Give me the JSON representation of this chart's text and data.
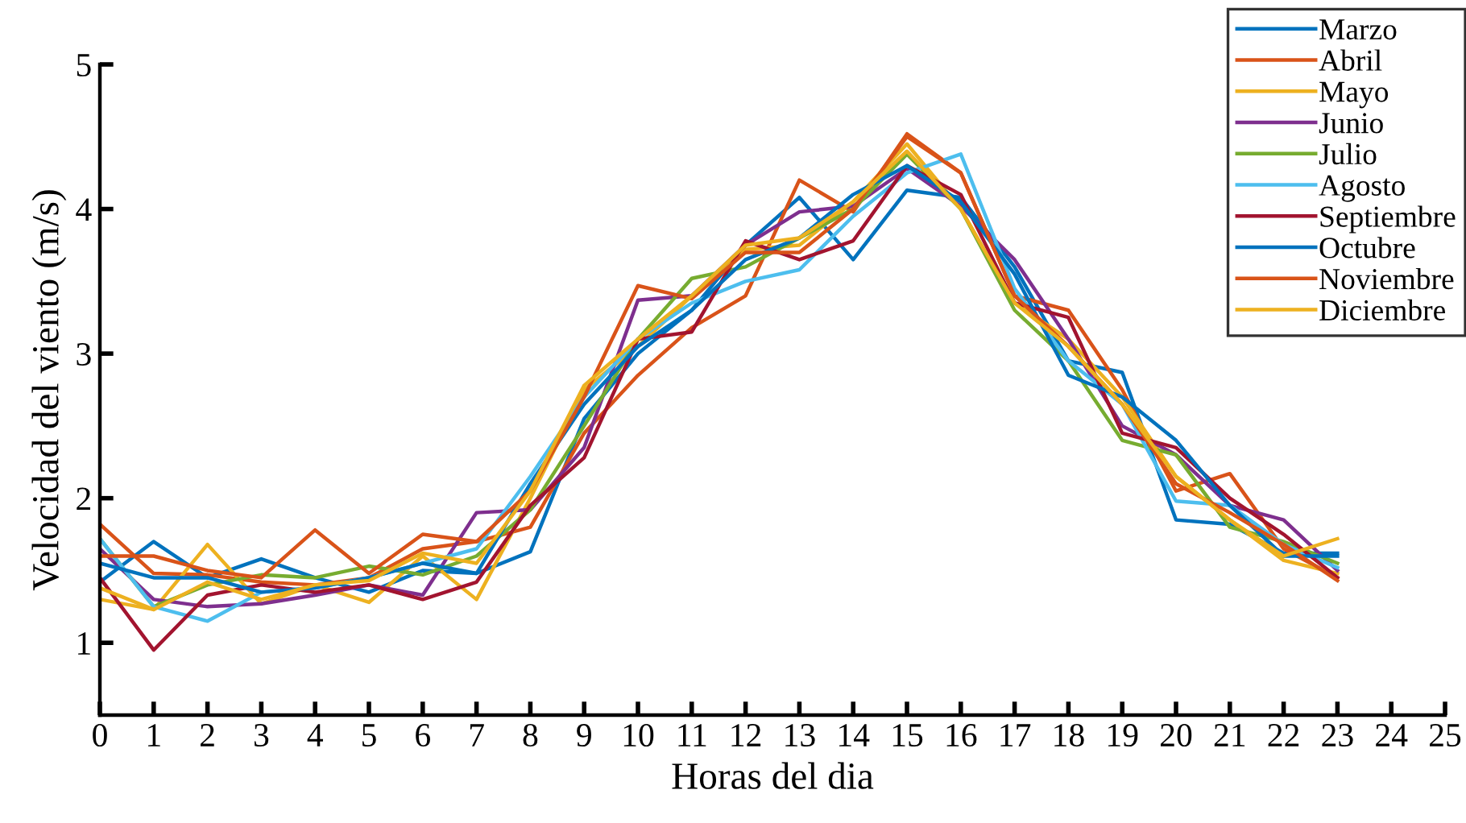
{
  "chart_data": {
    "type": "line",
    "xlabel": "Horas del dia",
    "ylabel": "Velocidad del viento (m/s)",
    "x": [
      0,
      1,
      2,
      3,
      4,
      5,
      6,
      7,
      8,
      9,
      10,
      11,
      12,
      13,
      14,
      15,
      16,
      17,
      18,
      19,
      20,
      21,
      22,
      23
    ],
    "xlim": [
      0,
      25
    ],
    "xticks": [
      0,
      1,
      2,
      3,
      4,
      5,
      6,
      7,
      8,
      9,
      10,
      11,
      12,
      13,
      14,
      15,
      16,
      17,
      18,
      19,
      20,
      21,
      22,
      23,
      24,
      25
    ],
    "ylim": [
      0.5,
      5
    ],
    "yticks": [
      1,
      2,
      3,
      4,
      5
    ],
    "grid": false,
    "legend": "top right",
    "marker": "none",
    "line_style": "solid",
    "series": [
      {
        "name": "Marzo",
        "color": "#0072bd",
        "values": [
          1.42,
          1.7,
          1.45,
          1.58,
          1.45,
          1.35,
          1.5,
          1.48,
          1.63,
          2.55,
          3.0,
          3.3,
          3.75,
          4.08,
          3.65,
          4.13,
          4.08,
          3.6,
          2.95,
          2.87,
          1.85,
          1.82,
          1.62,
          1.62
        ]
      },
      {
        "name": "Abril",
        "color": "#d95319",
        "values": [
          1.82,
          1.48,
          1.47,
          1.42,
          1.4,
          1.45,
          1.65,
          1.7,
          1.8,
          2.45,
          2.85,
          3.18,
          3.4,
          4.2,
          3.98,
          4.52,
          4.25,
          3.4,
          3.3,
          2.75,
          2.05,
          2.17,
          1.65,
          1.45
        ]
      },
      {
        "name": "Mayo",
        "color": "#edb120",
        "values": [
          1.3,
          1.23,
          1.68,
          1.27,
          1.4,
          1.28,
          1.6,
          1.3,
          2.0,
          2.75,
          3.05,
          3.4,
          3.72,
          3.75,
          4.05,
          4.45,
          4.0,
          3.35,
          3.1,
          2.7,
          2.15,
          1.85,
          1.57,
          1.48
        ]
      },
      {
        "name": "Junio",
        "color": "#7e2f8e",
        "values": [
          1.65,
          1.3,
          1.25,
          1.27,
          1.33,
          1.4,
          1.33,
          1.9,
          1.92,
          2.35,
          3.37,
          3.4,
          3.75,
          3.98,
          4.02,
          4.28,
          4.02,
          3.65,
          3.1,
          2.5,
          2.3,
          1.95,
          1.85,
          1.5
        ]
      },
      {
        "name": "Julio",
        "color": "#77ac30",
        "values": [
          1.72,
          1.25,
          1.4,
          1.47,
          1.45,
          1.53,
          1.47,
          1.6,
          1.92,
          2.5,
          3.1,
          3.52,
          3.6,
          3.8,
          4.0,
          4.38,
          4.0,
          3.3,
          2.95,
          2.4,
          2.3,
          1.8,
          1.7,
          1.55
        ]
      },
      {
        "name": "Agosto",
        "color": "#4dbeee",
        "values": [
          1.72,
          1.25,
          1.15,
          1.35,
          1.38,
          1.45,
          1.55,
          1.65,
          2.15,
          2.7,
          3.1,
          3.35,
          3.5,
          3.58,
          3.95,
          4.25,
          4.38,
          3.45,
          2.95,
          2.65,
          1.98,
          1.95,
          1.68,
          1.52
        ]
      },
      {
        "name": "Septiembre",
        "color": "#a2142f",
        "values": [
          1.45,
          0.95,
          1.33,
          1.4,
          1.35,
          1.4,
          1.3,
          1.42,
          1.95,
          2.28,
          3.1,
          3.15,
          3.78,
          3.65,
          3.78,
          4.3,
          4.1,
          3.35,
          3.25,
          2.45,
          2.35,
          2.0,
          1.75,
          1.45
        ]
      },
      {
        "name": "Octubre",
        "color": "#0072bd",
        "values": [
          1.55,
          1.45,
          1.45,
          1.35,
          1.38,
          1.45,
          1.55,
          1.48,
          2.1,
          2.65,
          3.05,
          3.3,
          3.65,
          3.8,
          4.1,
          4.3,
          4.05,
          3.55,
          2.85,
          2.7,
          2.4,
          1.95,
          1.6,
          1.6
        ]
      },
      {
        "name": "Noviembre",
        "color": "#d95319",
        "values": [
          1.6,
          1.6,
          1.5,
          1.45,
          1.78,
          1.48,
          1.75,
          1.7,
          2.05,
          2.7,
          3.47,
          3.38,
          3.7,
          3.7,
          4.0,
          4.5,
          4.25,
          3.4,
          3.05,
          2.65,
          2.1,
          1.9,
          1.68,
          1.43
        ]
      },
      {
        "name": "Diciembre",
        "color": "#edb120",
        "values": [
          1.38,
          1.23,
          1.42,
          1.3,
          1.4,
          1.43,
          1.62,
          1.55,
          2.05,
          2.78,
          3.1,
          3.4,
          3.75,
          3.8,
          4.05,
          4.4,
          4.0,
          3.35,
          3.05,
          2.65,
          2.15,
          1.85,
          1.6,
          1.72
        ]
      }
    ]
  }
}
